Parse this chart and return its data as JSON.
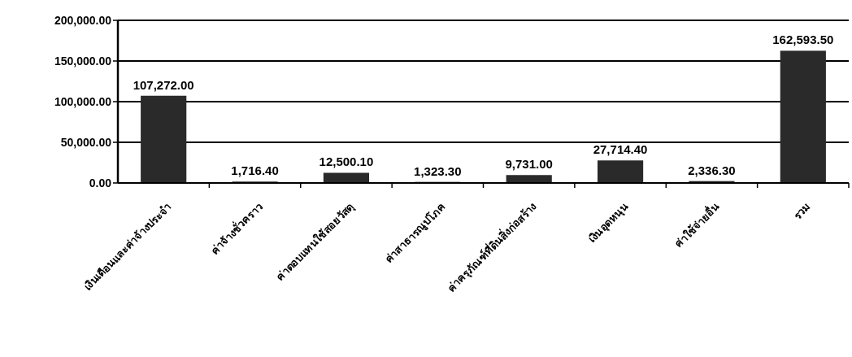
{
  "chart_data": {
    "type": "bar",
    "categories": [
      "เงินเดือนและค่าจ้างประจำ",
      "ค่าจ้างชั่วคราว",
      "ค่าตอบแทนใช้สอยวัสดุ",
      "ค่าสาธารณูปโภค",
      "ค่าครุภัณฑ์ที่ดินสิ่งก่อสร้าง",
      "เงินอุดหนุน",
      "ค่าใช้จ่ายอื่น",
      "รวม"
    ],
    "values": [
      107272.0,
      1716.4,
      12500.1,
      1323.3,
      9731.0,
      27714.4,
      2336.3,
      162593.5
    ],
    "color": "#2a2a2a",
    "value_labels": [
      "107,272.00",
      "1,716.40",
      "12,500.10",
      "1,323.30",
      "9,731.00",
      "27,714.40",
      "2,336.30",
      "162,593.50"
    ],
    "ylim": [
      0,
      200000
    ],
    "yticks": [
      {
        "value": 0,
        "label": "0.00"
      },
      {
        "value": 50000,
        "label": "50,000.00"
      },
      {
        "value": 100000,
        "label": "100,000.00"
      },
      {
        "value": 150000,
        "label": "150,000.00"
      },
      {
        "value": 200000,
        "label": "200,000.00"
      }
    ],
    "grid": "y"
  }
}
